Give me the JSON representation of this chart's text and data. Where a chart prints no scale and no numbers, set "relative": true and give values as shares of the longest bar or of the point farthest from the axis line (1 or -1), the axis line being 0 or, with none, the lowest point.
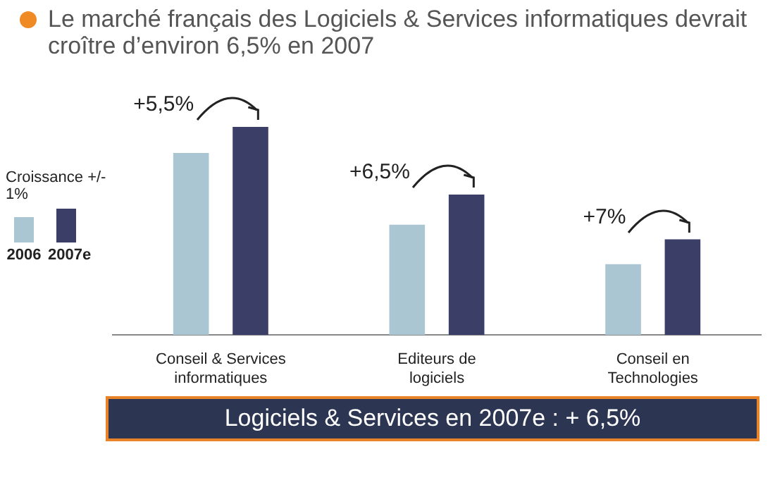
{
  "chart_data": {
    "type": "bar",
    "title": "Le marché français des Logiciels & Services informatiques devrait croître d’environ 6,5% en 2007",
    "categories": [
      "Conseil & Services informatiques",
      "Editeurs de logiciels",
      "Conseil en Technologies"
    ],
    "relative": true,
    "series": [
      {
        "name": "2006",
        "color": "#a9c6d2",
        "values": [
          0.875,
          0.53,
          0.34
        ]
      },
      {
        "name": "2007e",
        "color": "#3b3f68",
        "values": [
          1,
          0.675,
          0.46
        ]
      }
    ],
    "legend": "left",
    "legend_title": "Croissance +/- 1%",
    "grid": false,
    "annotations": [
      "+5,5%",
      "+6,5%",
      "+7%",
      "Logiciels & Services en 2007e : + 6,5%"
    ]
  }
}
